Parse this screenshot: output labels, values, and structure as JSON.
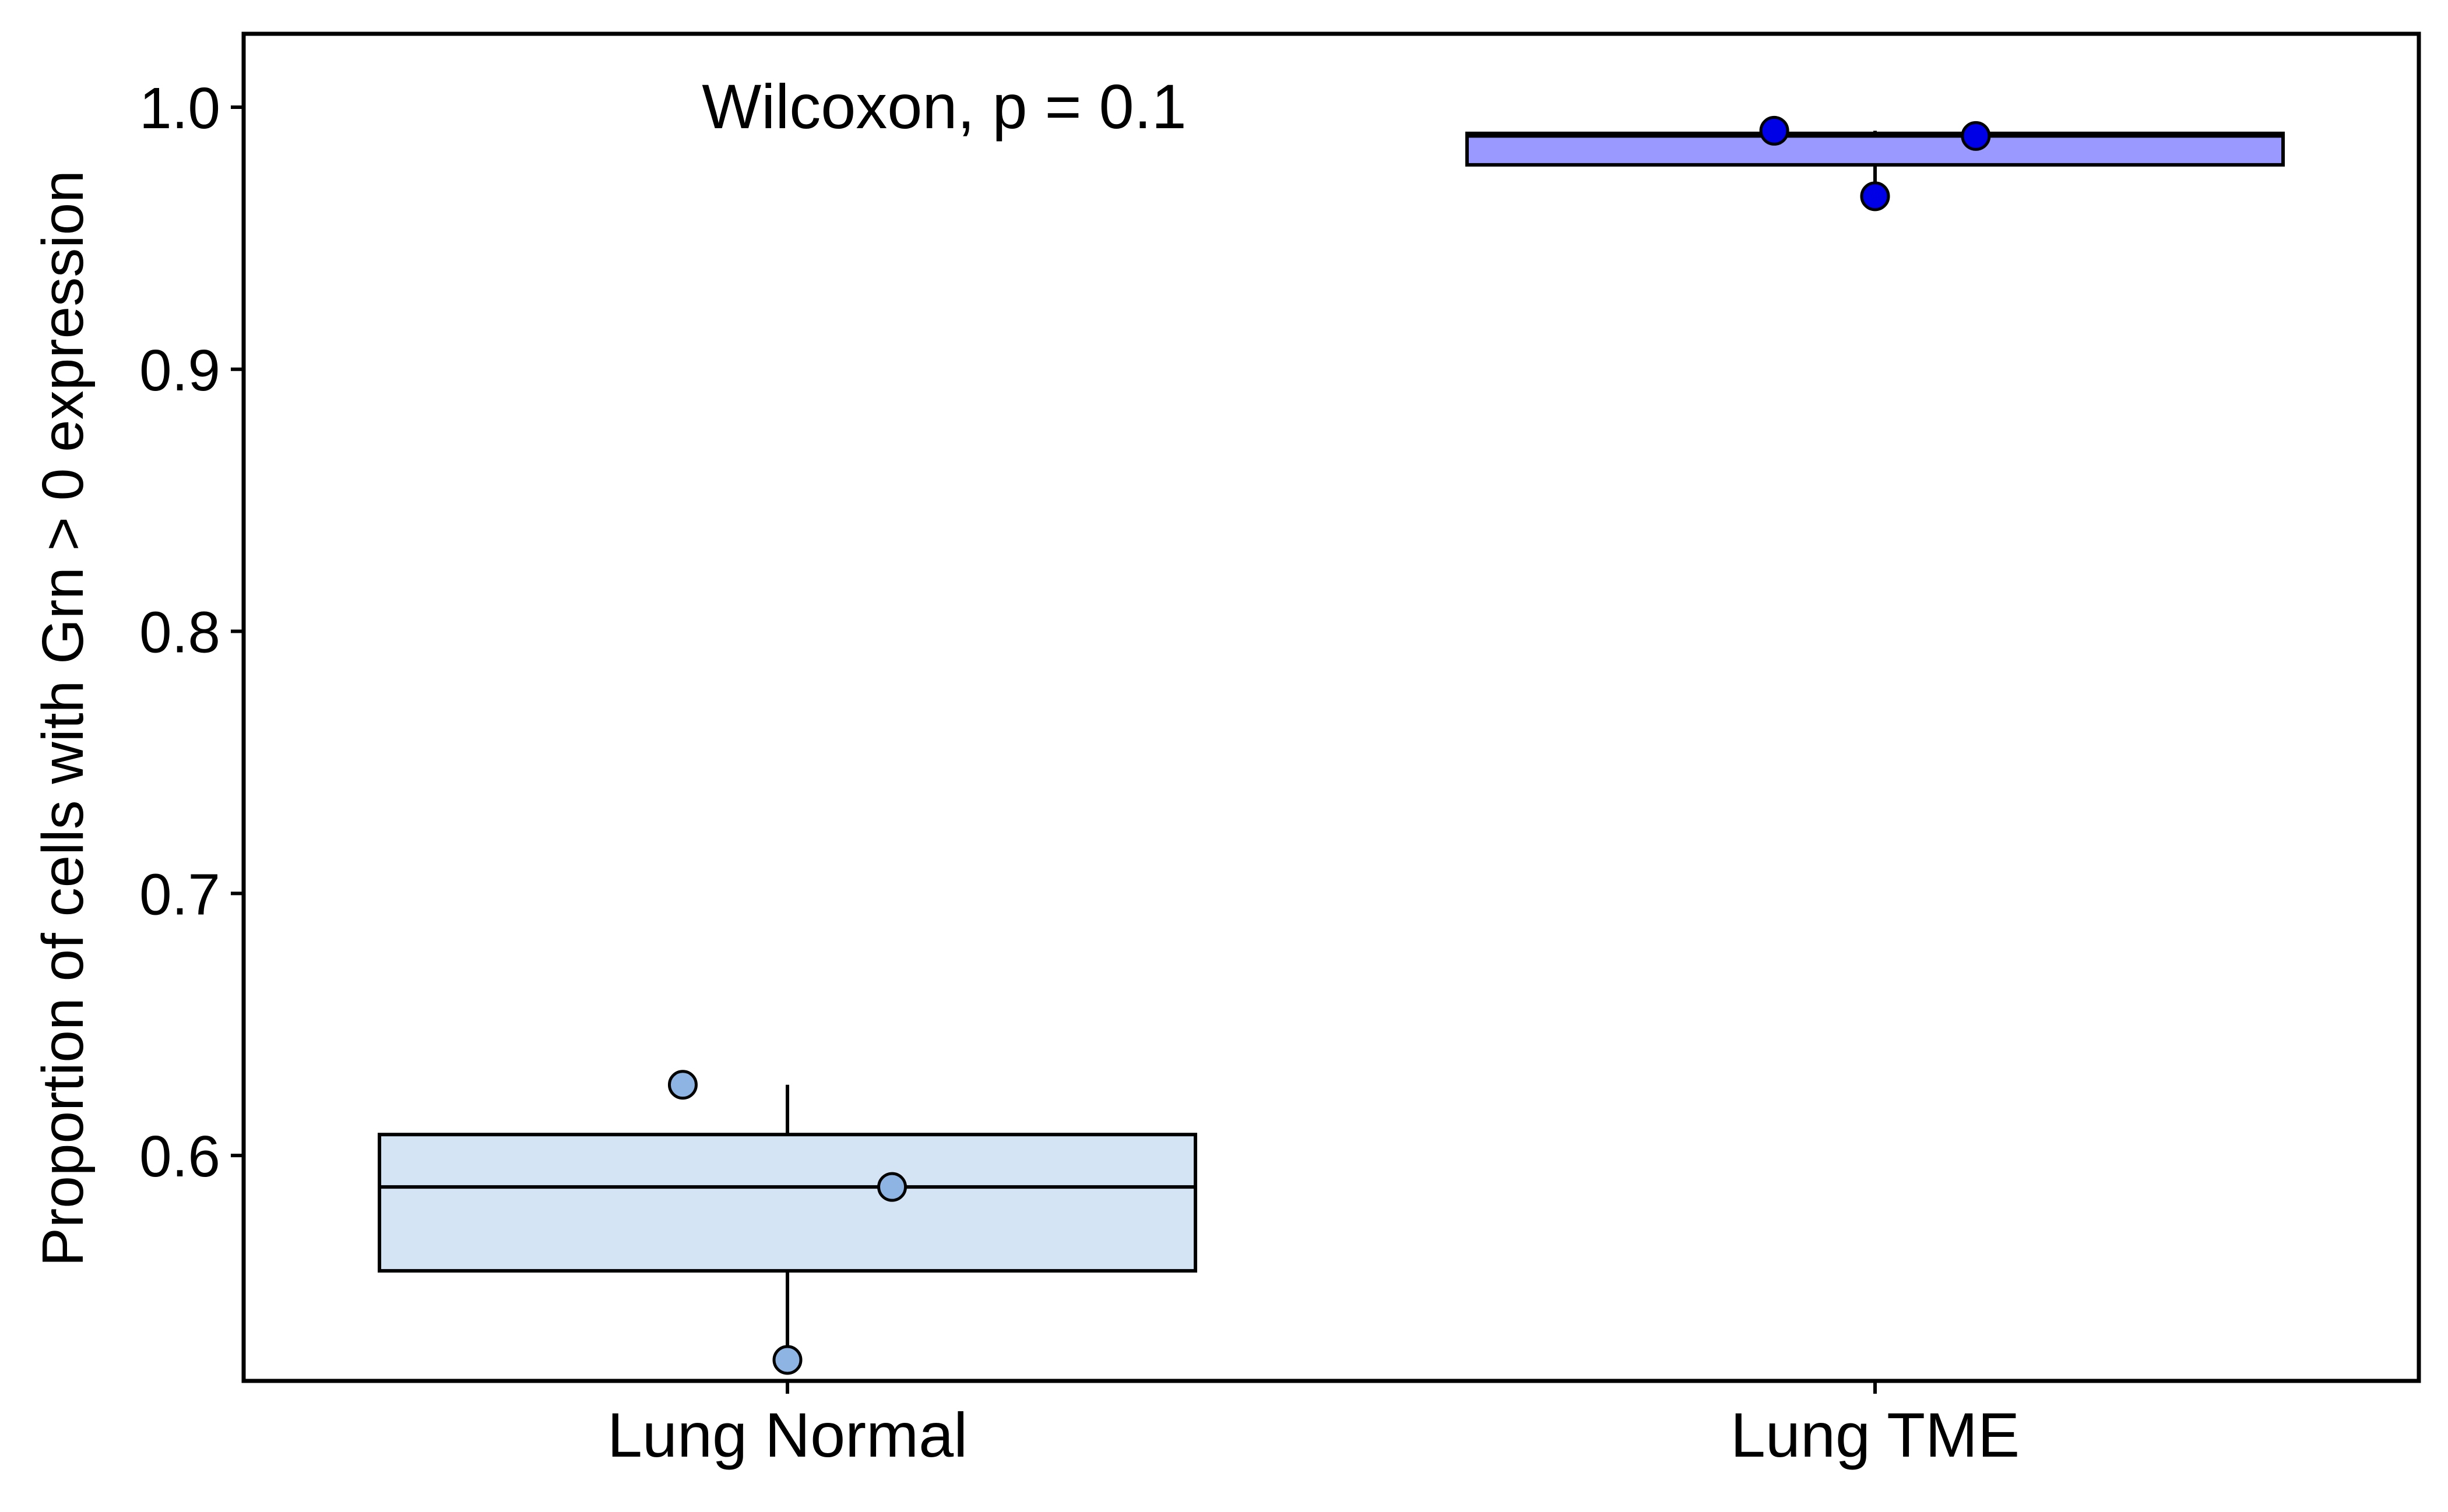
{
  "chart_data": {
    "type": "box",
    "title": "",
    "xlabel": "",
    "ylabel": "Proportion of cells with Grn > 0 expression",
    "categories": [
      "Lung Normal",
      "Lung TME"
    ],
    "yticks": [
      0.6,
      0.7,
      0.8,
      0.9,
      1.0
    ],
    "ytick_labels": [
      "0.6",
      "0.7",
      "0.8",
      "0.9",
      "1.0"
    ],
    "ylim": [
      0.514,
      1.028
    ],
    "grid": false,
    "legend": "none",
    "annotation": "Wilcoxon, p = 0.1",
    "boxes": [
      {
        "category": "Lung Normal",
        "q1": 0.556,
        "median": 0.588,
        "q3": 0.608,
        "whisker_low": 0.522,
        "whisker_high": 0.627,
        "fill": "#d4e4f4",
        "point_color": "#8db4e2"
      },
      {
        "category": "Lung TME",
        "q1": 0.978,
        "median": 0.989,
        "q3": 0.99,
        "whisker_low": 0.966,
        "whisker_high": 0.991,
        "fill": "#9999ff",
        "point_color": "#0000e6"
      }
    ],
    "points": [
      {
        "category": "Lung Normal",
        "y": 0.627,
        "jitter": -0.27
      },
      {
        "category": "Lung Normal",
        "y": 0.588,
        "jitter": 0.27
      },
      {
        "category": "Lung Normal",
        "y": 0.522,
        "jitter": 0.0
      },
      {
        "category": "Lung TME",
        "y": 0.991,
        "jitter": -0.26
      },
      {
        "category": "Lung TME",
        "y": 0.989,
        "jitter": 0.26
      },
      {
        "category": "Lung TME",
        "y": 0.966,
        "jitter": 0.0
      }
    ]
  }
}
